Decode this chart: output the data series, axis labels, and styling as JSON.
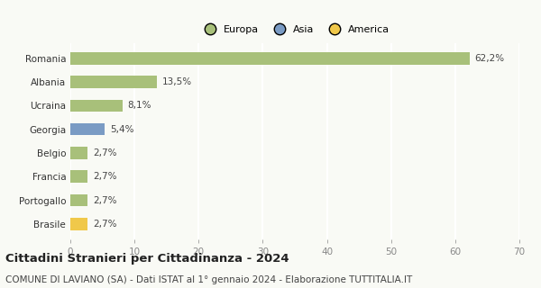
{
  "categories": [
    "Brasile",
    "Portogallo",
    "Francia",
    "Belgio",
    "Georgia",
    "Ucraina",
    "Albania",
    "Romania"
  ],
  "values": [
    2.7,
    2.7,
    2.7,
    2.7,
    5.4,
    8.1,
    13.5,
    62.2
  ],
  "labels": [
    "2,7%",
    "2,7%",
    "2,7%",
    "2,7%",
    "5,4%",
    "8,1%",
    "13,5%",
    "62,2%"
  ],
  "colors": [
    "#f0c84a",
    "#a8c07a",
    "#a8c07a",
    "#a8c07a",
    "#7a9bc4",
    "#a8c07a",
    "#a8c07a",
    "#a8c07a"
  ],
  "legend": [
    {
      "label": "Europa",
      "color": "#a8c07a"
    },
    {
      "label": "Asia",
      "color": "#7a9bc4"
    },
    {
      "label": "America",
      "color": "#f0c84a"
    }
  ],
  "xlim": [
    0,
    70
  ],
  "xticks": [
    0,
    10,
    20,
    30,
    40,
    50,
    60,
    70
  ],
  "title": "Cittadini Stranieri per Cittadinanza - 2024",
  "subtitle": "COMUNE DI LAVIANO (SA) - Dati ISTAT al 1° gennaio 2024 - Elaborazione TUTTITALIA.IT",
  "title_fontsize": 9.5,
  "subtitle_fontsize": 7.5,
  "background_color": "#f9faf5",
  "grid_color": "#ffffff",
  "bar_height": 0.52
}
